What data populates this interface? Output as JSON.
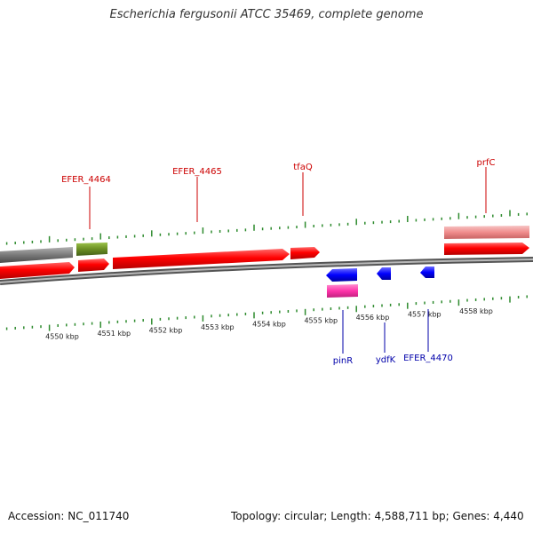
{
  "title": "Escherichia fergusonii ATCC 35469, complete genome",
  "footer": {
    "accession": "Accession: NC_011740",
    "summary": "Topology: circular; Length: 4,588,711 bp; Genes: 4,440"
  },
  "colors": {
    "cds": "#ff0000",
    "cds_dark": "#b40000",
    "gene_gray": "#7a7a7a",
    "gene_olive": "#6b8e23",
    "pseudo": "#f08c8c",
    "minus_strand": "#0000ff",
    "minus_pink": "#ff33aa",
    "backbone": "#888888",
    "ticks": "#2e8b2e",
    "label_red": "#cc0000",
    "label_blue": "#0000aa"
  },
  "scale": {
    "unit": "kbp",
    "labels": [
      {
        "value": 4550,
        "text": "4550 kbp"
      },
      {
        "value": 4551,
        "text": "4551 kbp"
      },
      {
        "value": 4552,
        "text": "4552 kbp"
      },
      {
        "value": 4553,
        "text": "4553 kbp"
      },
      {
        "value": 4554,
        "text": "4554 kbp"
      },
      {
        "value": 4555,
        "text": "4555 kbp"
      },
      {
        "value": 4556,
        "text": "4556 kbp"
      },
      {
        "value": 4557,
        "text": "4557 kbp"
      },
      {
        "value": 4558,
        "text": "4558 kbp"
      }
    ]
  },
  "genes_top": [
    {
      "name": "EFER_4464",
      "color": "label_red"
    },
    {
      "name": "EFER_4465",
      "color": "label_red"
    },
    {
      "name": "tfaQ",
      "color": "label_red"
    },
    {
      "name": "prfC",
      "color": "label_red"
    }
  ],
  "genes_bottom": [
    {
      "name": "pinR",
      "color": "label_blue"
    },
    {
      "name": "ydfK",
      "color": "label_blue"
    },
    {
      "name": "EFER_4470",
      "color": "label_blue"
    }
  ]
}
